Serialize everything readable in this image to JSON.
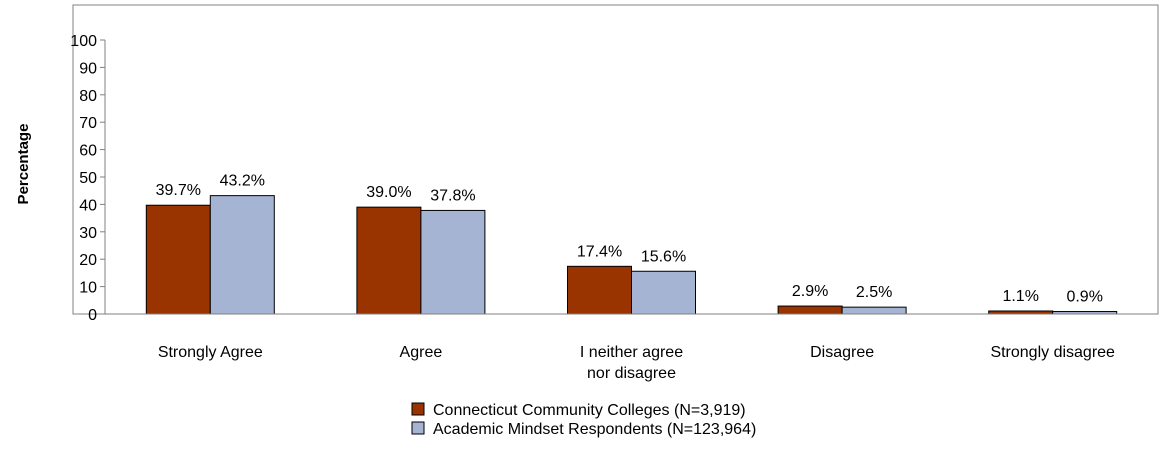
{
  "chart_data": {
    "type": "bar",
    "ylabel": "Percentage",
    "xlabel": "",
    "ylim": [
      0,
      100
    ],
    "yticks": [
      0,
      10,
      20,
      30,
      40,
      50,
      60,
      70,
      80,
      90,
      100
    ],
    "categories": [
      [
        "Strongly Agree"
      ],
      [
        "Agree"
      ],
      [
        "I neither agree",
        "nor disagree"
      ],
      [
        "Disagree"
      ],
      [
        "Strongly disagree"
      ]
    ],
    "series": [
      {
        "name": "Connecticut Community Colleges (N=3,919)",
        "color": "#993300",
        "values": [
          39.7,
          39.0,
          17.4,
          2.9,
          1.1
        ],
        "labels": [
          "39.7%",
          "39.0%",
          "17.4%",
          "2.9%",
          "1.1%"
        ]
      },
      {
        "name": "Academic Mindset Respondents (N=123,964)",
        "color": "#A6B4D4",
        "values": [
          43.2,
          37.8,
          15.6,
          2.5,
          0.9
        ],
        "labels": [
          "43.2%",
          "37.8%",
          "15.6%",
          "2.5%",
          "0.9%"
        ]
      }
    ],
    "grid": false,
    "legend_position": "bottom"
  }
}
